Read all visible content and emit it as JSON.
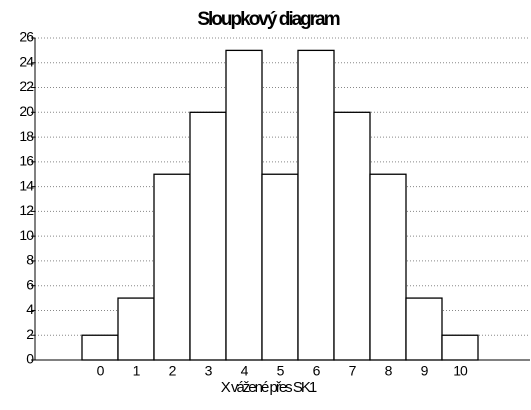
{
  "chart_data": {
    "type": "bar",
    "title": "Sloupkový diagram",
    "x_label": "X vážené přes SK1",
    "categories": [
      "0",
      "1",
      "2",
      "3",
      "4",
      "5",
      "6",
      "7",
      "8",
      "9",
      "10"
    ],
    "values": [
      2,
      5,
      15,
      20,
      25,
      15,
      25,
      20,
      15,
      5,
      2
    ],
    "color": "#ffffff",
    "ylim": [
      0,
      26
    ],
    "yticks": [
      0,
      2,
      4,
      6,
      8,
      10,
      12,
      14,
      16,
      18,
      20,
      22,
      24,
      26
    ],
    "grid": true
  }
}
